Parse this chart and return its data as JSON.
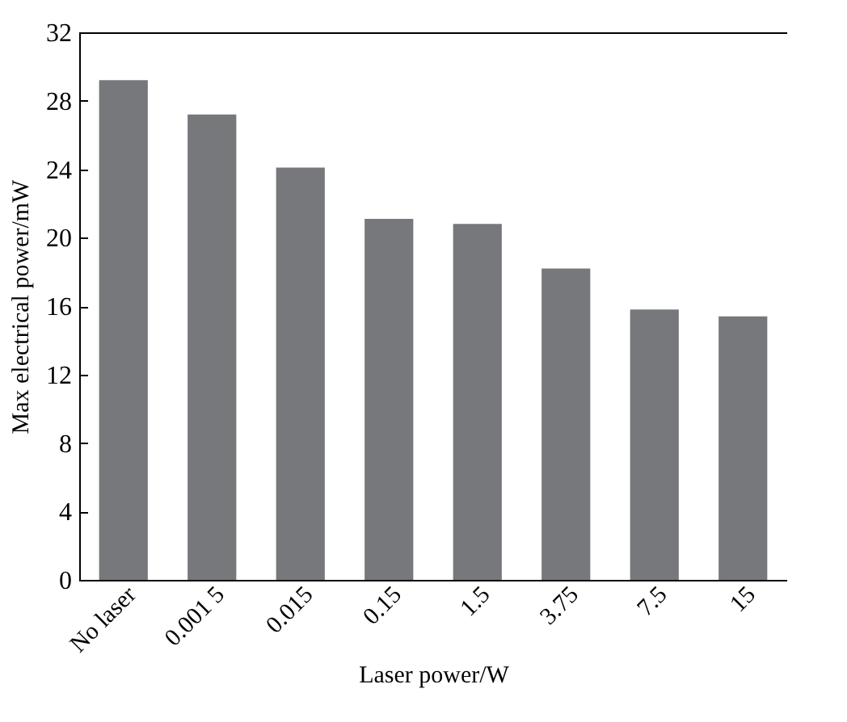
{
  "chart_data": {
    "type": "bar",
    "xlabel": "Laser power/W",
    "ylabel": "Max electrical power/mW",
    "categories": [
      "No laser",
      "0.001 5",
      "0.015",
      "0.15",
      "1.5",
      "3.75",
      "7.5",
      "15"
    ],
    "values": [
      29.2,
      27.2,
      24.1,
      21.1,
      20.8,
      18.2,
      15.8,
      15.4
    ],
    "color": "#77787c",
    "ylim": [
      0,
      32
    ],
    "yticks": [
      0,
      4,
      8,
      12,
      16,
      20,
      24,
      28,
      32
    ],
    "grid": false
  }
}
